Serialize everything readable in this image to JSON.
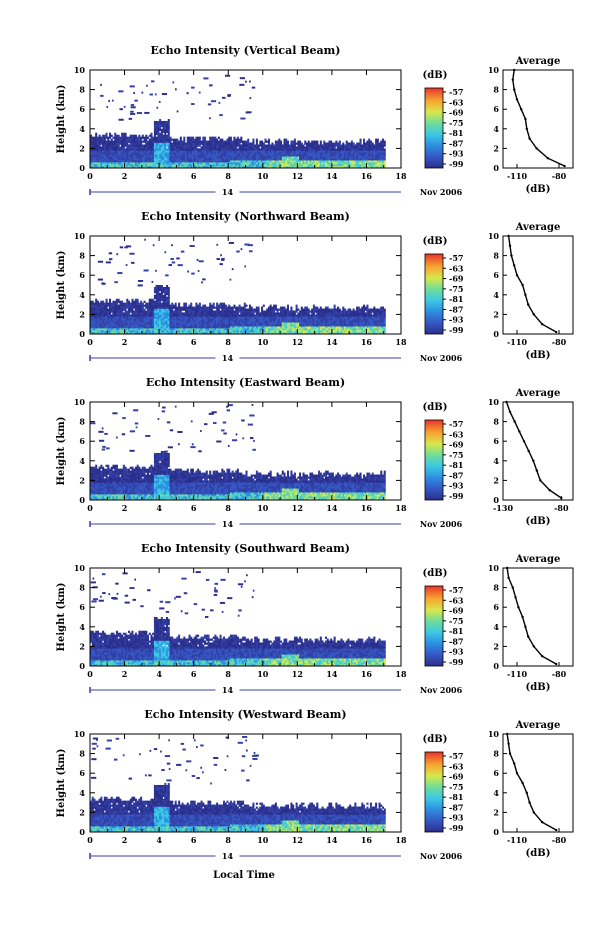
{
  "figure": {
    "xlabel": "Local Time",
    "date_label": "Nov 2006",
    "day_label": "14",
    "colorbar_unit": "(dB)",
    "avg_title": "Average",
    "avg_xlabel": "(dB)",
    "ylabel": "Height (km)"
  },
  "chart_data": [
    {
      "type": "heatmap",
      "title": "Echo Intensity (Vertical Beam)",
      "xlabel": "Local Time",
      "ylabel": "Height (km)",
      "xlim": [
        0,
        18
      ],
      "ylim": [
        0,
        10
      ],
      "xticks": [
        0,
        2,
        4,
        6,
        8,
        10,
        12,
        14,
        16,
        18
      ],
      "yticks": [
        0,
        2,
        4,
        6,
        8,
        10
      ],
      "colorbar": {
        "unit": "(dB)",
        "ticks": [
          -57,
          -63,
          -69,
          -75,
          -81,
          -87,
          -93,
          -99
        ]
      },
      "average_profile": {
        "title": "Average",
        "xlabel": "(dB)",
        "xticks": [
          -110,
          -80
        ],
        "xlim": [
          -120,
          -70
        ],
        "ylim": [
          0,
          10
        ],
        "points": [
          [
            -112,
            10
          ],
          [
            -113,
            9
          ],
          [
            -112,
            8
          ],
          [
            -110,
            7
          ],
          [
            -107,
            6
          ],
          [
            -104,
            5
          ],
          [
            -103,
            4
          ],
          [
            -101,
            3
          ],
          [
            -96,
            2
          ],
          [
            -88,
            1
          ],
          [
            -76,
            0.2
          ]
        ]
      }
    },
    {
      "type": "heatmap",
      "title": "Echo Intensity (Northward Beam)",
      "xlabel": "Local Time",
      "ylabel": "Height (km)",
      "xlim": [
        0,
        18
      ],
      "ylim": [
        0,
        10
      ],
      "xticks": [
        0,
        2,
        4,
        6,
        8,
        10,
        12,
        14,
        16,
        18
      ],
      "yticks": [
        0,
        2,
        4,
        6,
        8,
        10
      ],
      "colorbar": {
        "unit": "(dB)",
        "ticks": [
          -57,
          -63,
          -69,
          -75,
          -81,
          -87,
          -93,
          -99
        ]
      },
      "average_profile": {
        "title": "Average",
        "xlabel": "(dB)",
        "xticks": [
          -110,
          -80
        ],
        "xlim": [
          -120,
          -70
        ],
        "ylim": [
          0,
          10
        ],
        "points": [
          [
            -116,
            10
          ],
          [
            -115,
            9
          ],
          [
            -114,
            8
          ],
          [
            -112,
            7
          ],
          [
            -110,
            6
          ],
          [
            -106,
            5
          ],
          [
            -104,
            4
          ],
          [
            -102,
            3
          ],
          [
            -98,
            2
          ],
          [
            -92,
            1
          ],
          [
            -82,
            0.2
          ]
        ]
      }
    },
    {
      "type": "heatmap",
      "title": "Echo Intensity (Eastward Beam)",
      "xlabel": "Local Time",
      "ylabel": "Height (km)",
      "xlim": [
        0,
        18
      ],
      "ylim": [
        0,
        10
      ],
      "xticks": [
        0,
        2,
        4,
        6,
        8,
        10,
        12,
        14,
        16,
        18
      ],
      "yticks": [
        0,
        2,
        4,
        6,
        8,
        10
      ],
      "colorbar": {
        "unit": "(dB)",
        "ticks": [
          -57,
          -63,
          -69,
          -75,
          -81,
          -87,
          -93,
          -99
        ]
      },
      "average_profile": {
        "title": "Average",
        "xlabel": "(dB)",
        "xticks": [
          -130,
          -80
        ],
        "xlim": [
          -130,
          -70
        ],
        "ylim": [
          0,
          10
        ],
        "points": [
          [
            -127,
            10
          ],
          [
            -124,
            9
          ],
          [
            -120,
            8
          ],
          [
            -116,
            7
          ],
          [
            -112,
            6
          ],
          [
            -108,
            5
          ],
          [
            -104,
            4
          ],
          [
            -101,
            3
          ],
          [
            -98,
            2
          ],
          [
            -90,
            1
          ],
          [
            -80,
            0.2
          ]
        ]
      }
    },
    {
      "type": "heatmap",
      "title": "Echo Intensity (Southward Beam)",
      "xlabel": "Local Time",
      "ylabel": "Height (km)",
      "xlim": [
        0,
        18
      ],
      "ylim": [
        0,
        10
      ],
      "xticks": [
        0,
        2,
        4,
        6,
        8,
        10,
        12,
        14,
        16,
        18
      ],
      "yticks": [
        0,
        2,
        4,
        6,
        8,
        10
      ],
      "colorbar": {
        "unit": "(dB)",
        "ticks": [
          -57,
          -63,
          -69,
          -75,
          -81,
          -87,
          -93,
          -99
        ]
      },
      "average_profile": {
        "title": "Average",
        "xlabel": "(dB)",
        "xticks": [
          -110,
          -80
        ],
        "xlim": [
          -120,
          -70
        ],
        "ylim": [
          0,
          10
        ],
        "points": [
          [
            -117,
            10
          ],
          [
            -116,
            9
          ],
          [
            -113,
            8
          ],
          [
            -111,
            7
          ],
          [
            -109,
            6
          ],
          [
            -106,
            5
          ],
          [
            -104,
            4
          ],
          [
            -102,
            3
          ],
          [
            -98,
            2
          ],
          [
            -92,
            1
          ],
          [
            -82,
            0.2
          ]
        ]
      }
    },
    {
      "type": "heatmap",
      "title": "Echo Intensity (Westward Beam)",
      "xlabel": "Local Time",
      "ylabel": "Height (km)",
      "xlim": [
        0,
        18
      ],
      "ylim": [
        0,
        10
      ],
      "xticks": [
        0,
        2,
        4,
        6,
        8,
        10,
        12,
        14,
        16,
        18
      ],
      "yticks": [
        0,
        2,
        4,
        6,
        8,
        10
      ],
      "colorbar": {
        "unit": "(dB)",
        "ticks": [
          -57,
          -63,
          -69,
          -75,
          -81,
          -87,
          -93,
          -99
        ]
      },
      "average_profile": {
        "title": "Average",
        "xlabel": "(dB)",
        "xticks": [
          -110,
          -80
        ],
        "xlim": [
          -120,
          -70
        ],
        "ylim": [
          0,
          10
        ],
        "points": [
          [
            -117,
            10
          ],
          [
            -116,
            9
          ],
          [
            -115,
            8
          ],
          [
            -112,
            7
          ],
          [
            -110,
            6
          ],
          [
            -106,
            5
          ],
          [
            -103,
            4
          ],
          [
            -101,
            3
          ],
          [
            -98,
            2
          ],
          [
            -92,
            1
          ],
          [
            -82,
            0.2
          ]
        ]
      }
    }
  ]
}
